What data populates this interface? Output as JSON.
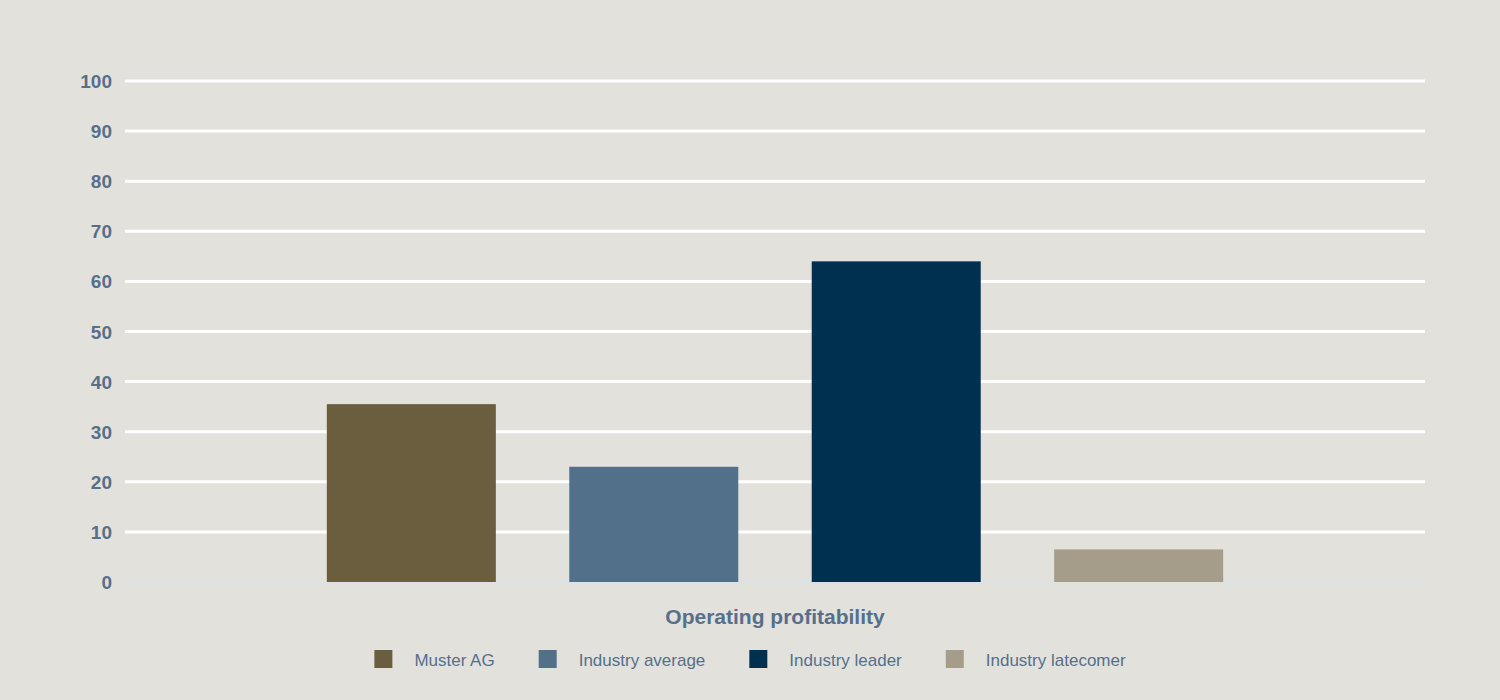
{
  "chart_data": {
    "type": "bar",
    "categories": [
      "Operating profitability"
    ],
    "series": [
      {
        "name": "Muster AG",
        "color": "#6b5e3f",
        "values": [
          35.5
        ]
      },
      {
        "name": "Industry average",
        "color": "#527089",
        "values": [
          23
        ]
      },
      {
        "name": "Industry leader",
        "color": "#003050",
        "values": [
          64
        ]
      },
      {
        "name": "Industry latecomer",
        "color": "#a59d8a",
        "values": [
          6.5
        ]
      }
    ],
    "ylim": [
      0,
      100
    ],
    "yticks": [
      0,
      10,
      20,
      30,
      40,
      50,
      60,
      70,
      80,
      90,
      100
    ],
    "grid": true,
    "legend": "bottom"
  }
}
